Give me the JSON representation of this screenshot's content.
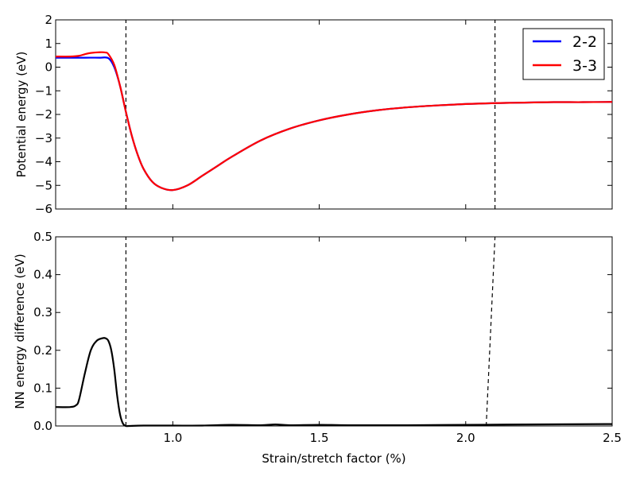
{
  "chart_data": [
    {
      "type": "line",
      "ylabel": "Potential energy (eV)",
      "xlim": [
        0.6,
        2.5
      ],
      "ylim": [
        -6,
        2
      ],
      "xticks": [
        "1.0",
        "1.5",
        "2.0",
        "2.5"
      ],
      "xtick_values": [
        1.0,
        1.5,
        2.0,
        2.5
      ],
      "yticks": [
        "2",
        "1",
        "0",
        "−1",
        "−2",
        "−3",
        "−4",
        "−5",
        "−6"
      ],
      "ytick_values": [
        2,
        1,
        0,
        -1,
        -2,
        -3,
        -4,
        -5,
        -6
      ],
      "legend": {
        "placement": "top-right"
      },
      "series": [
        {
          "name": "2-2",
          "color": "#0000ff",
          "x": [
            0.6,
            0.65,
            0.7,
            0.75,
            0.78,
            0.8,
            0.82,
            0.84,
            0.86,
            0.88,
            0.9,
            0.93,
            0.96,
            1.0,
            1.05,
            1.1,
            1.15,
            1.2,
            1.3,
            1.4,
            1.5,
            1.6,
            1.7,
            1.8,
            1.9,
            2.0,
            2.1,
            2.2,
            2.3,
            2.4,
            2.5
          ],
          "y": [
            0.4,
            0.4,
            0.4,
            0.4,
            0.38,
            0.0,
            -0.8,
            -1.9,
            -2.9,
            -3.7,
            -4.3,
            -4.85,
            -5.1,
            -5.2,
            -5.0,
            -4.6,
            -4.2,
            -3.8,
            -3.1,
            -2.6,
            -2.25,
            -2.0,
            -1.82,
            -1.7,
            -1.62,
            -1.56,
            -1.52,
            -1.5,
            -1.48,
            -1.48,
            -1.47
          ]
        },
        {
          "name": "3-3",
          "color": "#ff0000",
          "x": [
            0.6,
            0.65,
            0.68,
            0.7,
            0.72,
            0.75,
            0.77,
            0.78,
            0.8,
            0.82,
            0.84,
            0.86,
            0.88,
            0.9,
            0.93,
            0.96,
            1.0,
            1.05,
            1.1,
            1.15,
            1.2,
            1.3,
            1.4,
            1.5,
            1.6,
            1.7,
            1.8,
            1.9,
            2.0,
            2.1,
            2.2,
            2.3,
            2.4,
            2.5
          ],
          "y": [
            0.45,
            0.45,
            0.48,
            0.55,
            0.6,
            0.63,
            0.62,
            0.55,
            0.1,
            -0.8,
            -1.9,
            -2.9,
            -3.7,
            -4.3,
            -4.85,
            -5.1,
            -5.2,
            -5.0,
            -4.6,
            -4.2,
            -3.8,
            -3.1,
            -2.6,
            -2.25,
            -2.0,
            -1.82,
            -1.7,
            -1.62,
            -1.56,
            -1.52,
            -1.5,
            -1.48,
            -1.48,
            -1.47
          ]
        }
      ],
      "vlines": [
        {
          "x1": 0.84,
          "x2": 0.84,
          "color": "#000000"
        },
        {
          "x1": 2.1,
          "x2": 2.1,
          "color": "#000000"
        }
      ]
    },
    {
      "type": "line",
      "xlabel": "Strain/stretch factor (%)",
      "ylabel": "NN energy difference (eV)",
      "xlim": [
        0.6,
        2.5
      ],
      "ylim": [
        0.0,
        0.5
      ],
      "xticks": [
        "1.0",
        "1.5",
        "2.0",
        "2.5"
      ],
      "xtick_values": [
        1.0,
        1.5,
        2.0,
        2.5
      ],
      "yticks": [
        "0.5",
        "0.4",
        "0.3",
        "0.2",
        "0.1",
        "0.0"
      ],
      "ytick_values": [
        0.5,
        0.4,
        0.3,
        0.2,
        0.1,
        0.0
      ],
      "series": [
        {
          "color": "#000000",
          "x": [
            0.6,
            0.65,
            0.67,
            0.68,
            0.7,
            0.72,
            0.74,
            0.76,
            0.77,
            0.78,
            0.79,
            0.8,
            0.81,
            0.82,
            0.83,
            0.84,
            0.85,
            0.9,
            1.0,
            1.1,
            1.2,
            1.3,
            1.35,
            1.4,
            1.5,
            1.6,
            1.8,
            2.0,
            2.2,
            2.5
          ],
          "y": [
            0.05,
            0.05,
            0.055,
            0.07,
            0.14,
            0.2,
            0.225,
            0.232,
            0.232,
            0.225,
            0.2,
            0.15,
            0.08,
            0.03,
            0.006,
            0.0,
            0.0,
            0.001,
            0.001,
            0.001,
            0.003,
            0.002,
            0.004,
            0.002,
            0.003,
            0.002,
            0.002,
            0.003,
            0.004,
            0.005
          ]
        }
      ],
      "vlines": [
        {
          "x1": 0.84,
          "x2": 0.84,
          "color": "#000000"
        },
        {
          "x1": 2.07,
          "x2": 2.1,
          "color": "#000000"
        }
      ]
    }
  ]
}
